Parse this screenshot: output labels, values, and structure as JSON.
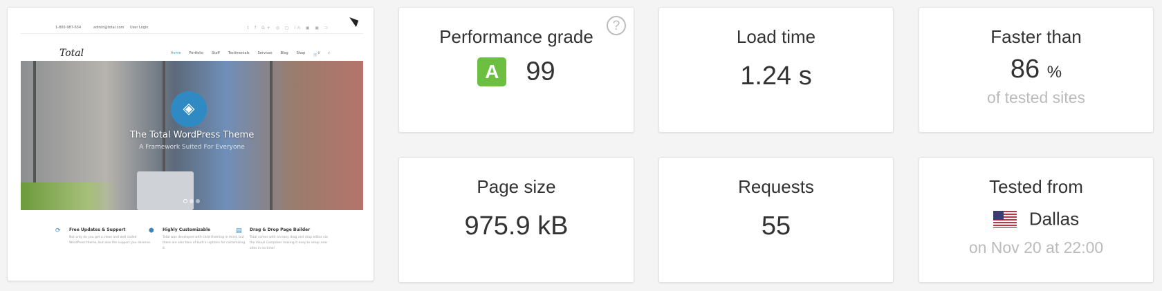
{
  "thumbnail": {
    "topbar": {
      "phone": "1-800-987-654",
      "email": "admin@total.com",
      "login": "User Login",
      "social": "𝕥 f G+ ◎ ▢ in ▣ ▣ ⊃"
    },
    "logo": "Total",
    "nav": [
      "Home",
      "Portfolio",
      "Staff",
      "Testimonials",
      "Services",
      "Blog",
      "Shop"
    ],
    "cart_count": "0",
    "hero": {
      "title": "The Total WordPress Theme",
      "subtitle": "A Framework Suited For Everyone"
    },
    "features": [
      {
        "title": "Free Updates & Support",
        "text": "Not only do you get a clean and well coded WordPress theme, but also the support you deserve."
      },
      {
        "title": "Highly Customizable",
        "text": "Total was developed with child theming in mind, but there are also tons of built in options for customizing it."
      },
      {
        "title": "Drag & Drop Page Builder",
        "text": "Total comes with an easy drag and drop editor via the Visual Composer making it easy to setup new sites in no time!"
      }
    ]
  },
  "stats": {
    "grade": {
      "label": "Performance grade",
      "letter": "A",
      "score": "99",
      "help": "?",
      "color": "#6cbf40"
    },
    "load_time": {
      "label": "Load time",
      "value": "1.24 s"
    },
    "faster_than": {
      "label": "Faster than",
      "value": "86",
      "unit": "%",
      "sub": "of tested sites"
    },
    "page_size": {
      "label": "Page size",
      "value": "975.9 kB"
    },
    "requests": {
      "label": "Requests",
      "value": "55"
    },
    "tested_from": {
      "label": "Tested from",
      "location": "Dallas",
      "flag": "us-flag-icon",
      "sub": "on Nov 20 at 22:00"
    }
  }
}
